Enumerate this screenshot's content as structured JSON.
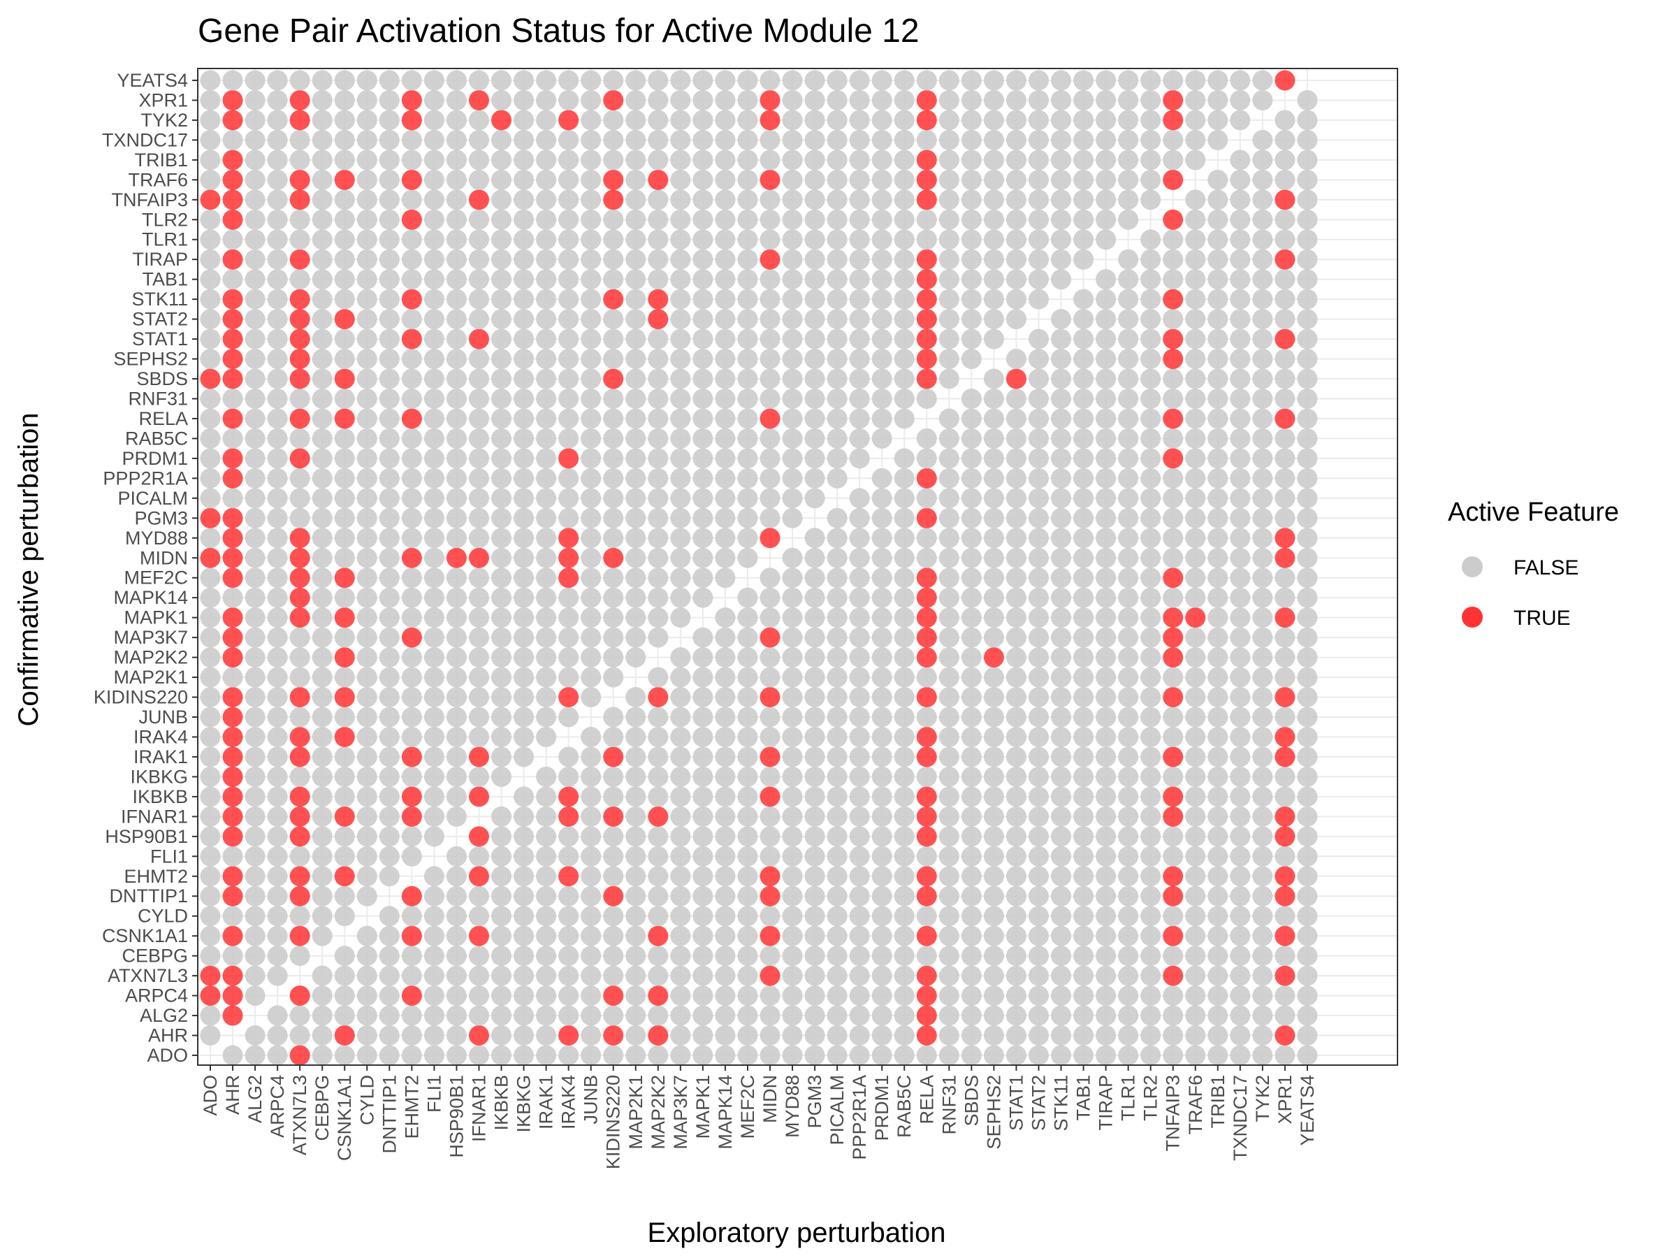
{
  "chart_data": {
    "type": "scatter",
    "title": "Gene Pair Activation Status for Active Module 12",
    "xlabel": "Exploratory perturbation",
    "ylabel": "Confirmative perturbation",
    "genes": [
      "ADO",
      "AHR",
      "ALG2",
      "ARPC4",
      "ATXN7L3",
      "CEBPG",
      "CSNK1A1",
      "CYLD",
      "DNTTIP1",
      "EHMT2",
      "FLI1",
      "HSP90B1",
      "IFNAR1",
      "IKBKB",
      "IKBKG",
      "IRAK1",
      "IRAK4",
      "JUNB",
      "KIDINS220",
      "MAP2K1",
      "MAP2K2",
      "MAP3K7",
      "MAPK1",
      "MAPK14",
      "MEF2C",
      "MIDN",
      "MYD88",
      "PGM3",
      "PICALM",
      "PPP2R1A",
      "PRDM1",
      "RAB5C",
      "RELA",
      "RNF31",
      "SBDS",
      "SEPHS2",
      "STAT1",
      "STAT2",
      "STK11",
      "TAB1",
      "TIRAP",
      "TLR1",
      "TLR2",
      "TNFAIP3",
      "TRAF6",
      "TRIB1",
      "TXNDC17",
      "TYK2",
      "XPR1",
      "YEATS4"
    ],
    "x_categories": [
      "ADO",
      "AHR",
      "ALG2",
      "ARPC4",
      "ATXN7L3",
      "CEBPG",
      "CSNK1A1",
      "CYLD",
      "DNTTIP1",
      "EHMT2",
      "FLI1",
      "HSP90B1",
      "IFNAR1",
      "IKBKB",
      "IKBKG",
      "IRAK1",
      "IRAK4",
      "JUNB",
      "KIDINS220",
      "MAP2K1",
      "MAP2K2",
      "MAP3K7",
      "MAPK1",
      "MAPK14",
      "MEF2C",
      "MIDN",
      "MYD88",
      "PGM3",
      "PICALM",
      "PPP2R1A",
      "PRDM1",
      "RAB5C",
      "RELA",
      "RNF31",
      "SBDS",
      "SEPHS2",
      "STAT1",
      "STAT2",
      "STK11",
      "TAB1",
      "TIRAP",
      "TLR1",
      "TLR2",
      "TNFAIP3",
      "TRAF6",
      "TRIB1",
      "TXNDC17",
      "TYK2",
      "XPR1",
      "YEATS4"
    ],
    "y_categories": [
      "ADO",
      "AHR",
      "ALG2",
      "ARPC4",
      "ATXN7L3",
      "CEBPG",
      "CSNK1A1",
      "CYLD",
      "DNTTIP1",
      "EHMT2",
      "FLI1",
      "HSP90B1",
      "IFNAR1",
      "IKBKB",
      "IKBKG",
      "IRAK1",
      "IRAK4",
      "JUNB",
      "KIDINS220",
      "MAP2K1",
      "MAP2K2",
      "MAP3K7",
      "MAPK1",
      "MAPK14",
      "MEF2C",
      "MIDN",
      "MYD88",
      "PGM3",
      "PICALM",
      "PPP2R1A",
      "PRDM1",
      "RAB5C",
      "RELA",
      "RNF31",
      "SBDS",
      "SEPHS2",
      "STAT1",
      "STAT2",
      "STK11",
      "TAB1",
      "TIRAP",
      "TLR1",
      "TLR2",
      "TNFAIP3",
      "TRAF6",
      "TRIB1",
      "TXNDC17",
      "TYK2",
      "XPR1",
      "YEATS4"
    ],
    "active_pairs": {
      "YEATS4": [
        "XPR1"
      ],
      "XPR1": [
        "AHR",
        "ATXN7L3",
        "EHMT2",
        "IFNAR1",
        "KIDINS220",
        "MIDN",
        "RELA",
        "TNFAIP3"
      ],
      "TYK2": [
        "AHR",
        "ATXN7L3",
        "EHMT2",
        "IKBKB",
        "IRAK4",
        "MIDN",
        "RELA",
        "TNFAIP3"
      ],
      "TRIB1": [
        "AHR",
        "RELA"
      ],
      "TRAF6": [
        "AHR",
        "ATXN7L3",
        "CSNK1A1",
        "EHMT2",
        "KIDINS220",
        "MAP2K2",
        "MIDN",
        "RELA",
        "TNFAIP3"
      ],
      "TNFAIP3": [
        "ADO",
        "AHR",
        "ATXN7L3",
        "IFNAR1",
        "KIDINS220",
        "RELA",
        "XPR1"
      ],
      "TLR2": [
        "AHR",
        "EHMT2",
        "TNFAIP3"
      ],
      "TIRAP": [
        "AHR",
        "ATXN7L3",
        "MIDN",
        "RELA",
        "XPR1"
      ],
      "TAB1": [
        "RELA"
      ],
      "STK11": [
        "AHR",
        "ATXN7L3",
        "EHMT2",
        "KIDINS220",
        "MAP2K2",
        "RELA",
        "TNFAIP3"
      ],
      "STAT2": [
        "AHR",
        "ATXN7L3",
        "CSNK1A1",
        "MAP2K2",
        "RELA"
      ],
      "STAT1": [
        "AHR",
        "ATXN7L3",
        "EHMT2",
        "IFNAR1",
        "RELA",
        "TNFAIP3",
        "XPR1"
      ],
      "SEPHS2": [
        "AHR",
        "ATXN7L3",
        "RELA",
        "TNFAIP3"
      ],
      "SBDS": [
        "ADO",
        "AHR",
        "ATXN7L3",
        "CSNK1A1",
        "KIDINS220",
        "RELA",
        "STAT1"
      ],
      "RELA": [
        "AHR",
        "ATXN7L3",
        "CSNK1A1",
        "EHMT2",
        "MIDN",
        "TNFAIP3",
        "XPR1"
      ],
      "PRDM1": [
        "AHR",
        "ATXN7L3",
        "IRAK4",
        "TNFAIP3"
      ],
      "PPP2R1A": [
        "AHR",
        "RELA"
      ],
      "PGM3": [
        "ADO",
        "AHR",
        "RELA"
      ],
      "MYD88": [
        "AHR",
        "ATXN7L3",
        "IRAK4",
        "MIDN",
        "XPR1"
      ],
      "MIDN": [
        "ADO",
        "AHR",
        "ATXN7L3",
        "EHMT2",
        "HSP90B1",
        "IFNAR1",
        "IRAK4",
        "KIDINS220",
        "XPR1"
      ],
      "MEF2C": [
        "AHR",
        "ATXN7L3",
        "CSNK1A1",
        "IRAK4",
        "RELA",
        "TNFAIP3"
      ],
      "MAPK14": [
        "ATXN7L3",
        "RELA"
      ],
      "MAPK1": [
        "AHR",
        "ATXN7L3",
        "CSNK1A1",
        "RELA",
        "TNFAIP3",
        "TRAF6",
        "XPR1"
      ],
      "MAP3K7": [
        "AHR",
        "EHMT2",
        "MIDN",
        "RELA",
        "TNFAIP3"
      ],
      "MAP2K2": [
        "AHR",
        "CSNK1A1",
        "RELA",
        "SEPHS2",
        "TNFAIP3"
      ],
      "KIDINS220": [
        "AHR",
        "ATXN7L3",
        "CSNK1A1",
        "IRAK4",
        "MAP2K2",
        "MIDN",
        "RELA",
        "TNFAIP3",
        "XPR1"
      ],
      "JUNB": [
        "AHR"
      ],
      "IRAK4": [
        "AHR",
        "ATXN7L3",
        "CSNK1A1",
        "RELA",
        "XPR1"
      ],
      "IRAK1": [
        "AHR",
        "ATXN7L3",
        "EHMT2",
        "IFNAR1",
        "KIDINS220",
        "MIDN",
        "RELA",
        "TNFAIP3",
        "XPR1"
      ],
      "IKBKG": [
        "AHR"
      ],
      "IKBKB": [
        "AHR",
        "ATXN7L3",
        "EHMT2",
        "IFNAR1",
        "IRAK4",
        "MIDN",
        "RELA",
        "TNFAIP3"
      ],
      "IFNAR1": [
        "AHR",
        "ATXN7L3",
        "CSNK1A1",
        "EHMT2",
        "IRAK4",
        "KIDINS220",
        "MAP2K2",
        "RELA",
        "TNFAIP3",
        "XPR1"
      ],
      "HSP90B1": [
        "AHR",
        "ATXN7L3",
        "IFNAR1",
        "RELA",
        "XPR1"
      ],
      "EHMT2": [
        "AHR",
        "ATXN7L3",
        "CSNK1A1",
        "IFNAR1",
        "IRAK4",
        "MIDN",
        "RELA",
        "TNFAIP3",
        "XPR1"
      ],
      "DNTTIP1": [
        "AHR",
        "ATXN7L3",
        "EHMT2",
        "KIDINS220",
        "MIDN",
        "RELA",
        "TNFAIP3",
        "XPR1"
      ],
      "CSNK1A1": [
        "AHR",
        "ATXN7L3",
        "EHMT2",
        "IFNAR1",
        "MAP2K2",
        "MIDN",
        "RELA",
        "TNFAIP3",
        "XPR1"
      ],
      "ATXN7L3": [
        "ADO",
        "AHR",
        "MIDN",
        "RELA",
        "TNFAIP3",
        "XPR1"
      ],
      "ARPC4": [
        "ADO",
        "AHR",
        "ATXN7L3",
        "EHMT2",
        "KIDINS220",
        "MAP2K2",
        "RELA"
      ],
      "ALG2": [
        "AHR",
        "RELA"
      ],
      "AHR": [
        "CSNK1A1",
        "IFNAR1",
        "IRAK4",
        "KIDINS220",
        "MAP2K2",
        "RELA",
        "XPR1"
      ],
      "ADO": [
        "ATXN7L3"
      ]
    },
    "legend": {
      "title": "Active Feature",
      "placement": "right",
      "entries": [
        {
          "label": "FALSE",
          "color": "#cccccc"
        },
        {
          "label": "TRUE",
          "color": "#ff3333"
        }
      ]
    },
    "grid": true,
    "diagonal": "empty"
  }
}
